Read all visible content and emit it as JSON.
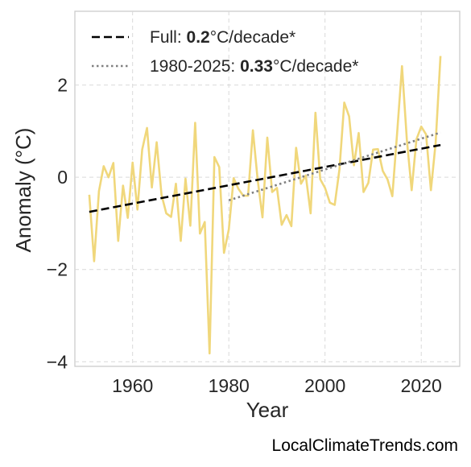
{
  "chart_data": {
    "type": "line",
    "xlabel": "Year",
    "ylabel": "Anomaly (°C)",
    "xlim": [
      1948,
      2028
    ],
    "ylim": [
      -4.1,
      3.6
    ],
    "xticks": [
      1960,
      1980,
      2000,
      2020
    ],
    "yticks": [
      -4,
      -2,
      0,
      2
    ],
    "ytick_labels": [
      "−4",
      "−2",
      "0",
      "2"
    ],
    "grid": true,
    "legend_position": "top-left",
    "series": [
      {
        "role": "anomaly",
        "color": "#f0d77b",
        "x": [
          1951,
          1952,
          1953,
          1954,
          1955,
          1956,
          1957,
          1958,
          1959,
          1960,
          1961,
          1962,
          1963,
          1964,
          1965,
          1966,
          1967,
          1968,
          1969,
          1970,
          1971,
          1972,
          1973,
          1974,
          1975,
          1976,
          1977,
          1978,
          1979,
          1980,
          1981,
          1982,
          1983,
          1984,
          1985,
          1986,
          1987,
          1988,
          1989,
          1990,
          1991,
          1992,
          1993,
          1994,
          1995,
          1996,
          1997,
          1998,
          1999,
          2000,
          2001,
          2002,
          2003,
          2004,
          2005,
          2006,
          2007,
          2008,
          2009,
          2010,
          2011,
          2012,
          2013,
          2014,
          2015,
          2016,
          2017,
          2018,
          2019,
          2020,
          2021,
          2022,
          2023,
          2024
        ],
        "values": [
          -0.38,
          -1.82,
          -0.3,
          0.24,
          0.0,
          0.31,
          -1.38,
          -0.18,
          -0.88,
          0.32,
          -0.7,
          0.6,
          1.07,
          -0.22,
          0.76,
          -0.38,
          -0.78,
          -0.86,
          -0.14,
          -1.38,
          -0.03,
          -1.05,
          1.18,
          -1.22,
          -0.97,
          -3.82,
          0.44,
          0.22,
          -1.64,
          -1.13,
          -0.02,
          -0.25,
          -0.4,
          -0.4,
          1.02,
          -0.05,
          -0.87,
          0.86,
          -0.32,
          -0.23,
          -1.03,
          -0.82,
          -1.06,
          0.64,
          -0.14,
          0.04,
          -0.78,
          1.4,
          -0.04,
          -0.23,
          -0.55,
          -0.6,
          0.17,
          1.62,
          1.32,
          0.26,
          0.96,
          -0.32,
          -0.12,
          0.6,
          0.61,
          0.14,
          -0.05,
          -0.41,
          0.97,
          2.41,
          0.82,
          -0.28,
          0.82,
          1.1,
          0.93,
          -0.28,
          0.75,
          2.63
        ]
      },
      {
        "role": "trend-full",
        "name": "Full:",
        "rate_value": "0.2",
        "rate_unit": "°C/decade*",
        "color": "#000000",
        "style": "dashed",
        "x": [
          1951,
          2024
        ],
        "values": [
          -0.75,
          0.7
        ]
      },
      {
        "role": "trend-recent",
        "name": "1980-2025:",
        "rate_value": "0.33",
        "rate_unit": "°C/decade*",
        "color": "#808080",
        "style": "dotted",
        "x": [
          1980,
          2024
        ],
        "values": [
          -0.5,
          0.97
        ]
      }
    ]
  },
  "credit": "LocalClimateTrends.com"
}
